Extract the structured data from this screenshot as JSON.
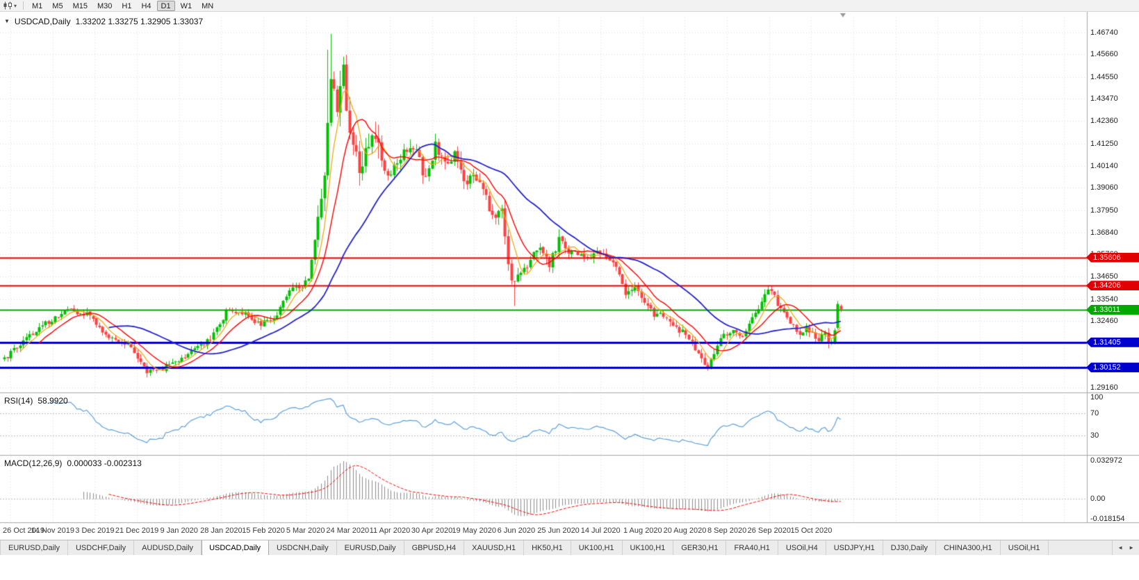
{
  "toolbar": {
    "timeframes": [
      {
        "label": "M1",
        "active": false
      },
      {
        "label": "M5",
        "active": false
      },
      {
        "label": "M15",
        "active": false
      },
      {
        "label": "M30",
        "active": false
      },
      {
        "label": "H1",
        "active": false
      },
      {
        "label": "H4",
        "active": false
      },
      {
        "label": "D1",
        "active": true
      },
      {
        "label": "W1",
        "active": false
      },
      {
        "label": "MN",
        "active": false
      }
    ]
  },
  "chart": {
    "title": {
      "symbol": "USDCAD,Daily",
      "ohlc": "1.33202 1.33275 1.32905 1.33037"
    },
    "rsi_label": {
      "name": "RSI(14)",
      "value": "58.9920"
    },
    "macd_label": {
      "name": "MACD(12,26,9)",
      "values": "0.000033 -0.002313"
    }
  },
  "chart_data": {
    "type": "candlestick",
    "symbol": "USDCAD",
    "timeframe": "Daily",
    "last_ohlc": {
      "open": 1.33202,
      "high": 1.33275,
      "low": 1.32905,
      "close": 1.33037
    },
    "price_axis": {
      "top": 1.475,
      "bottom": 1.2902,
      "labels": [
        "1.46740",
        "1.45660",
        "1.44550",
        "1.43470",
        "1.42360",
        "1.41250",
        "1.40140",
        "1.39060",
        "1.37950",
        "1.36840",
        "1.35760",
        "1.34650",
        "1.33540",
        "1.32460",
        "1.31350",
        "1.30240",
        "1.29160"
      ]
    },
    "date_labels": [
      "26 Oct 2019",
      "14 Nov 2019",
      "3 Dec 2019",
      "21 Dec 2019",
      "9 Jan 2020",
      "28 Jan 2020",
      "15 Feb 2020",
      "5 Mar 2020",
      "24 Mar 2020",
      "11 Apr 2020",
      "30 Apr 2020",
      "19 May 2020",
      "6 Jun 2020",
      "25 Jun 2020",
      "14 Jul 2020",
      "1 Aug 2020",
      "20 Aug 2020",
      "8 Sep 2020",
      "26 Sep 2020",
      "15 Oct 2020"
    ],
    "hlines": [
      {
        "price": 1.35606,
        "label": "1.35606",
        "color": "#e00000",
        "width": 2
      },
      {
        "price": 1.34206,
        "label": "1.34206",
        "color": "#e00000",
        "width": 2
      },
      {
        "price": 1.33011,
        "label": "1.33011",
        "color": "#00a800",
        "width": 2
      },
      {
        "price": 1.31405,
        "label": "1.31405",
        "color": "#0000cc",
        "width": 3
      },
      {
        "price": 1.30152,
        "label": "1.30152",
        "color": "#0000cc",
        "width": 3
      }
    ],
    "candles": {
      "count": 265,
      "up_color": "#00c000",
      "down_color": "#ff4040",
      "anchors": [
        [
          0,
          1.306
        ],
        [
          6,
          1.315
        ],
        [
          13,
          1.3235
        ],
        [
          20,
          1.33
        ],
        [
          26,
          1.328
        ],
        [
          32,
          1.317
        ],
        [
          39,
          1.3135
        ],
        [
          45,
          1.2995
        ],
        [
          50,
          1.301
        ],
        [
          55,
          1.3055
        ],
        [
          60,
          1.31
        ],
        [
          65,
          1.316
        ],
        [
          70,
          1.329
        ],
        [
          75,
          1.329
        ],
        [
          80,
          1.323
        ],
        [
          85,
          1.3255
        ],
        [
          90,
          1.339
        ],
        [
          93,
          1.342
        ],
        [
          96,
          1.344
        ],
        [
          99,
          1.372
        ],
        [
          101,
          1.4
        ],
        [
          102,
          1.425
        ],
        [
          103,
          1.448
        ],
        [
          105,
          1.43
        ],
        [
          107,
          1.447
        ],
        [
          109,
          1.418
        ],
        [
          112,
          1.399
        ],
        [
          115,
          1.414
        ],
        [
          118,
          1.41
        ],
        [
          121,
          1.394
        ],
        [
          124,
          1.405
        ],
        [
          127,
          1.411
        ],
        [
          130,
          1.409
        ],
        [
          133,
          1.394
        ],
        [
          136,
          1.411
        ],
        [
          139,
          1.401
        ],
        [
          142,
          1.408
        ],
        [
          145,
          1.393
        ],
        [
          148,
          1.397
        ],
        [
          151,
          1.391
        ],
        [
          154,
          1.375
        ],
        [
          157,
          1.378
        ],
        [
          160,
          1.343
        ],
        [
          163,
          1.348
        ],
        [
          166,
          1.355
        ],
        [
          169,
          1.36
        ],
        [
          172,
          1.352
        ],
        [
          175,
          1.366
        ],
        [
          178,
          1.358
        ],
        [
          181,
          1.358
        ],
        [
          184,
          1.355
        ],
        [
          187,
          1.358
        ],
        [
          190,
          1.356
        ],
        [
          193,
          1.351
        ],
        [
          196,
          1.339
        ],
        [
          199,
          1.342
        ],
        [
          202,
          1.334
        ],
        [
          205,
          1.327
        ],
        [
          208,
          1.327
        ],
        [
          211,
          1.321
        ],
        [
          214,
          1.32
        ],
        [
          217,
          1.313
        ],
        [
          220,
          1.305
        ],
        [
          222,
          1.302
        ],
        [
          225,
          1.312
        ],
        [
          227,
          1.318
        ],
        [
          230,
          1.319
        ],
        [
          233,
          1.317
        ],
        [
          236,
          1.325
        ],
        [
          239,
          1.333
        ],
        [
          241,
          1.34
        ],
        [
          243,
          1.337
        ],
        [
          245,
          1.33
        ],
        [
          247,
          1.327
        ],
        [
          249,
          1.322
        ],
        [
          251,
          1.317
        ],
        [
          253,
          1.321
        ],
        [
          255,
          1.318
        ],
        [
          257,
          1.314
        ],
        [
          259,
          1.32
        ],
        [
          260,
          1.313
        ],
        [
          261,
          1.315
        ],
        [
          262,
          1.321
        ],
        [
          263,
          1.333
        ],
        [
          264,
          1.3304
        ]
      ],
      "volatility": [
        [
          0,
          90,
          0.0045
        ],
        [
          91,
          97,
          0.006
        ],
        [
          98,
          118,
          0.016
        ],
        [
          119,
          145,
          0.009
        ],
        [
          146,
          175,
          0.008
        ],
        [
          176,
          215,
          0.0055
        ],
        [
          216,
          264,
          0.005
        ]
      ],
      "overrides": {
        "102": {
          "high": 1.459
        },
        "103": {
          "high": 1.4668
        },
        "107": {
          "high": 1.4555
        },
        "161": {
          "low": 1.332
        },
        "241": {
          "high": 1.3421
        },
        "263": {
          "open": 1.3212,
          "high": 1.3345,
          "low": 1.3205,
          "close": 1.333
        },
        "264": {
          "open": 1.33202,
          "high": 1.33275,
          "low": 1.32905,
          "close": 1.33037
        }
      }
    },
    "moving_averages": [
      {
        "period": 6,
        "color": "#f0a500",
        "width": 1.2
      },
      {
        "period": 12,
        "color": "#ff0000",
        "width": 1.4
      },
      {
        "period": 34,
        "color": "#2222cc",
        "width": 1.8
      }
    ],
    "rsi": {
      "period": 14,
      "current": "58.9920",
      "color": "#5aa0e0",
      "axis_labels": [
        {
          "text": "100",
          "value": 100
        },
        {
          "text": "70",
          "value": 70
        },
        {
          "text": "30",
          "value": 30
        }
      ],
      "dotted_levels": [
        70,
        30
      ],
      "range": [
        -4,
        104
      ]
    },
    "macd": {
      "fast": 12,
      "slow": 26,
      "signal": 9,
      "hist_color": "#8c8c8c",
      "signal_color": "#ff0000",
      "axis_top_label": "0.032972",
      "axis_zero_label": "0.00",
      "axis_bottom_label": "-0.018154",
      "range": [
        -0.018154,
        0.032972
      ]
    }
  },
  "tabs": {
    "active_index": 3,
    "items": [
      "EURUSD,Daily",
      "USDCHF,Daily",
      "AUDUSD,Daily",
      "USDCAD,Daily",
      "USDCNH,Daily",
      "EURUSD,Daily",
      "GBPUSD,H4",
      "XAUUSD,H1",
      "HK50,H1",
      "UK100,H1",
      "UK100,H1",
      "GER30,H1",
      "FRA40,H1",
      "USOil,H4",
      "USDJPY,H1",
      "DJ30,Daily",
      "CHINA300,H1",
      "USOil,H1"
    ]
  }
}
